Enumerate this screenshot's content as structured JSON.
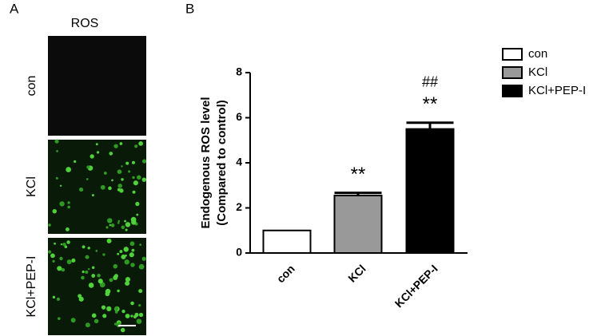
{
  "panel_a": {
    "label": "A",
    "title": "ROS",
    "rows": [
      "con",
      "KCl",
      "KCl+PEP-I"
    ]
  },
  "chart_data": {
    "type": "bar",
    "panel_label": "B",
    "y_label": [
      "Endogenous ROS level",
      "(Compared to control)"
    ],
    "categories": [
      "con",
      "KCl",
      "KCl+PEP-I"
    ],
    "values": [
      1.0,
      2.55,
      5.5
    ],
    "errors": [
      0,
      0.12,
      0.28
    ],
    "colors": [
      "#ffffff",
      "#999999",
      "#000000"
    ],
    "ylim": [
      0,
      8
    ],
    "yticks": [
      0,
      2,
      4,
      6,
      8
    ],
    "annotations": [
      {
        "text": "**",
        "category": "KCl",
        "level": 1
      },
      {
        "text": "**",
        "category": "KCl+PEP-I",
        "level": 1
      },
      {
        "text": "##",
        "category": "KCl+PEP-I",
        "level": 2
      }
    ],
    "legend": "top-right"
  }
}
